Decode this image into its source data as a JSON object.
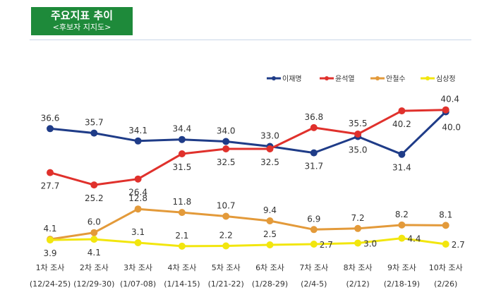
{
  "header": {
    "title": "주요지표 추이",
    "subtitle": "<후보자 지지도>"
  },
  "chart_data": {
    "type": "line",
    "categories": [
      "1차 조사",
      "2차 조사",
      "3차 조사",
      "4차 조사",
      "5차 조사",
      "6차 조사",
      "7차 조사",
      "8차 조사",
      "9차 조사",
      "10차 조사"
    ],
    "dates": [
      "(12/24-25)",
      "(12/29-30)",
      "(1/07-08)",
      "(1/14-15)",
      "(1/21-22)",
      "(1/28-29)",
      "(2/4-5)",
      "(2/12)",
      "(2/18-19)",
      "(2/26)"
    ],
    "series": [
      {
        "name": "이재명",
        "color": "#1f3c88",
        "values": [
          36.6,
          35.7,
          34.1,
          34.4,
          34.0,
          33.0,
          31.7,
          35.0,
          31.4,
          40.0
        ]
      },
      {
        "name": "윤석열",
        "color": "#e0312c",
        "values": [
          27.7,
          25.2,
          26.4,
          31.5,
          32.5,
          32.5,
          36.8,
          35.5,
          40.2,
          40.4
        ]
      },
      {
        "name": "안철수",
        "color": "#e39a3a",
        "values": [
          4.1,
          6.0,
          12.8,
          11.8,
          10.7,
          9.4,
          6.9,
          7.2,
          8.2,
          8.1
        ]
      },
      {
        "name": "심상정",
        "color": "#f2e60e",
        "values": [
          3.9,
          4.1,
          3.1,
          2.1,
          2.2,
          2.5,
          2.7,
          3.0,
          4.4,
          2.7
        ]
      }
    ],
    "legend_position": "top-right",
    "grid": false
  }
}
